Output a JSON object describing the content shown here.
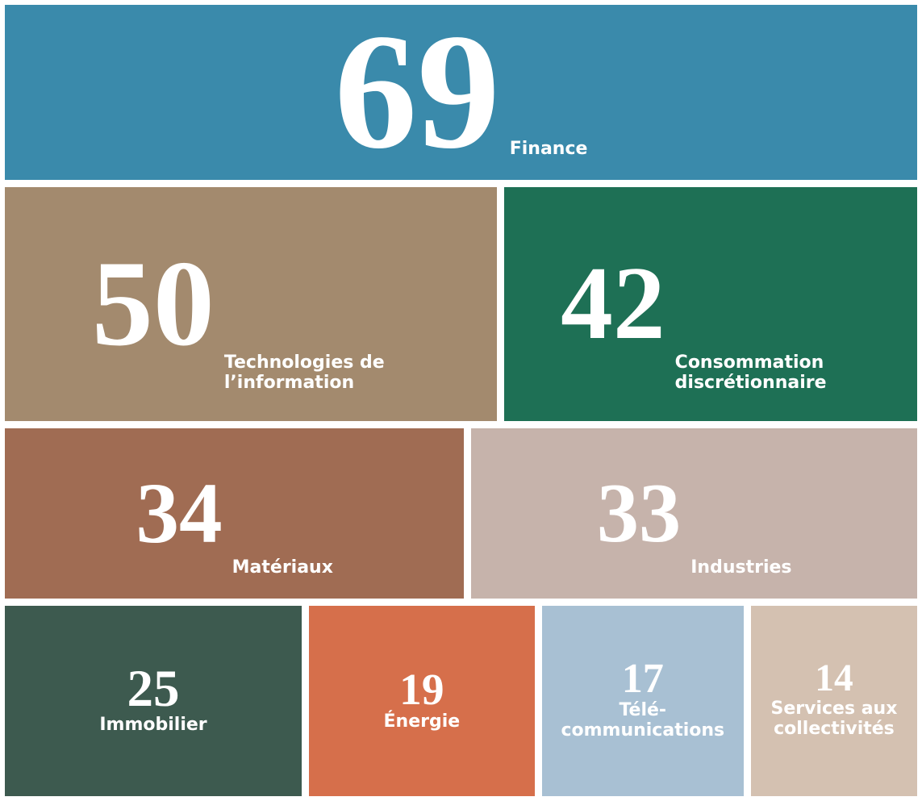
{
  "chart_data": {
    "type": "treemap",
    "rows": [
      [
        {
          "name": "Finance",
          "value": 69,
          "color": "#3a8aab"
        }
      ],
      [
        {
          "name": "Technologies de l’information",
          "value": 50,
          "color": "#a38a6e"
        },
        {
          "name": "Consommation discrétionnaire",
          "value": 42,
          "color": "#1e7055"
        }
      ],
      [
        {
          "name": "Matériaux",
          "value": 34,
          "color": "#a06c53"
        },
        {
          "name": "Industries",
          "value": 33,
          "color": "#c6b3ab"
        }
      ],
      [
        {
          "name": "Immobilier",
          "value": 25,
          "color": "#3d5a4f"
        },
        {
          "name": "Énergie",
          "value": 19,
          "color": "#d66f4b"
        },
        {
          "name": "Télé-communications",
          "value": 17,
          "color": "#a8c0d3"
        },
        {
          "name": "Services aux collectivités",
          "value": 14,
          "color": "#d4c1b1"
        }
      ]
    ]
  }
}
